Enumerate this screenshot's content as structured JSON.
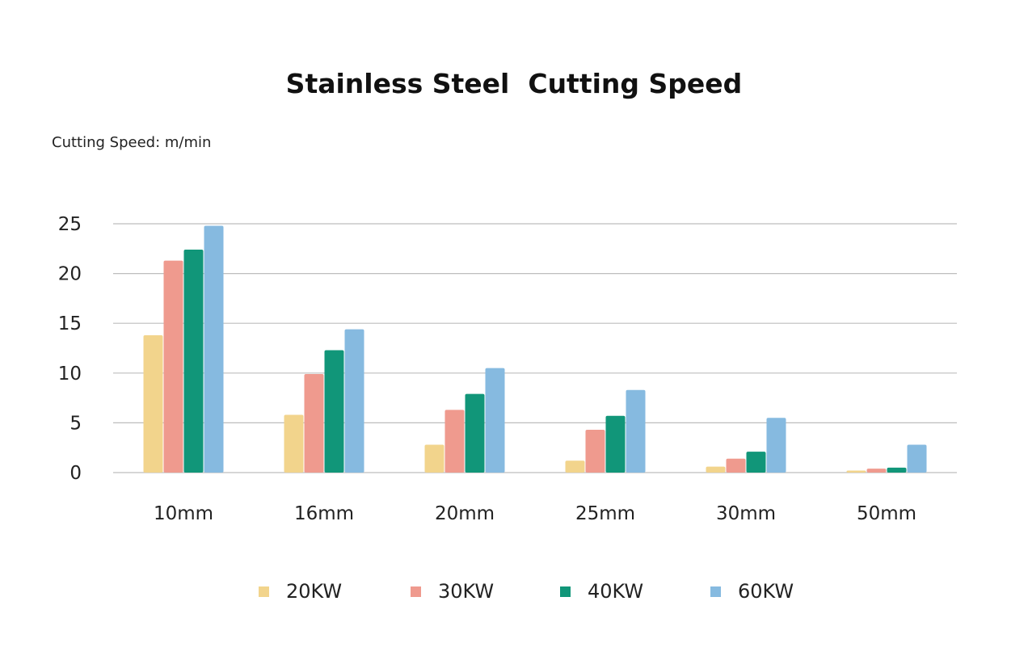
{
  "chart_data": {
    "type": "bar",
    "title": "Stainless Steel  Cutting Speed",
    "unit_label": "Cutting Speed: m/min",
    "categories": [
      "10mm",
      "16mm",
      "20mm",
      "25mm",
      "30mm",
      "50mm"
    ],
    "series": [
      {
        "name": "20KW",
        "color": "#F2D48C",
        "values": [
          13.8,
          5.8,
          2.8,
          1.2,
          0.6,
          0.2
        ]
      },
      {
        "name": "30KW",
        "color": "#EF9A8E",
        "values": [
          21.3,
          9.9,
          6.3,
          4.3,
          1.4,
          0.4
        ]
      },
      {
        "name": "40KW",
        "color": "#119679",
        "values": [
          22.4,
          12.3,
          7.9,
          5.7,
          2.1,
          0.5
        ]
      },
      {
        "name": "60KW",
        "color": "#86BAE0",
        "values": [
          24.8,
          14.4,
          10.5,
          8.3,
          5.5,
          2.8
        ]
      }
    ],
    "y_ticks": [
      0,
      5,
      10,
      15,
      20,
      25
    ],
    "ylim": [
      0,
      25
    ],
    "grid": true,
    "legend_position": "bottom"
  }
}
